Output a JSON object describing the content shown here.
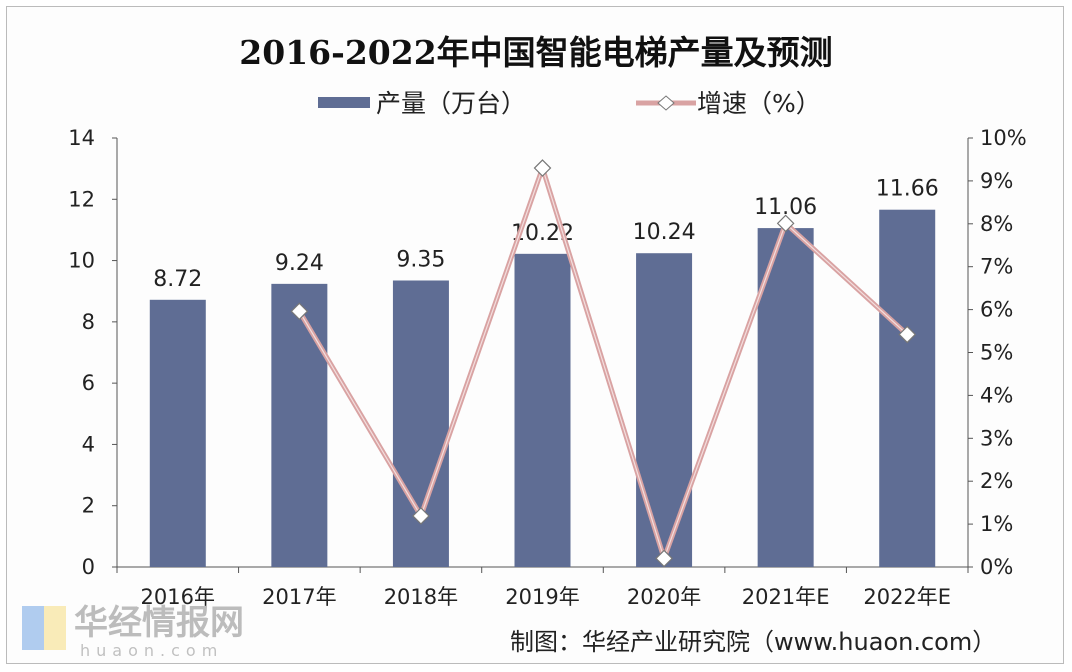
{
  "chart_data": {
    "type": "bar",
    "title": "2016-2022年中国智能电梯产量及预测",
    "categories": [
      "2016年",
      "2017年",
      "2018年",
      "2019年",
      "2020年",
      "2021年E",
      "2022年E"
    ],
    "series": [
      {
        "name": "产量（万台）",
        "type": "bar",
        "axis": "left",
        "color": "#5F6D94",
        "values": [
          8.72,
          9.24,
          9.35,
          10.22,
          10.24,
          11.06,
          11.66
        ],
        "data_labels": [
          "8.72",
          "9.24",
          "9.35",
          "10.22",
          "10.24",
          "11.06",
          "11.66"
        ]
      },
      {
        "name": "增速（%）",
        "type": "line",
        "axis": "right",
        "color": "#D9A3A3",
        "marker": "diamond",
        "values": [
          null,
          5.96,
          1.19,
          9.3,
          0.2,
          8.01,
          5.42
        ]
      }
    ],
    "left_axis": {
      "ylim": [
        0,
        14
      ],
      "ticks": [
        "0",
        "2",
        "4",
        "6",
        "8",
        "10",
        "12",
        "14"
      ]
    },
    "right_axis": {
      "ylim": [
        0,
        10
      ],
      "ticks": [
        "0%",
        "1%",
        "2%",
        "3%",
        "4%",
        "5%",
        "6%",
        "7%",
        "8%",
        "9%",
        "10%"
      ]
    },
    "legend": "top",
    "grid": false
  },
  "source": "制图：华经产业研究院（www.huaon.com）",
  "watermark": {
    "text": "华经情报网",
    "sub": "huaon.com"
  }
}
